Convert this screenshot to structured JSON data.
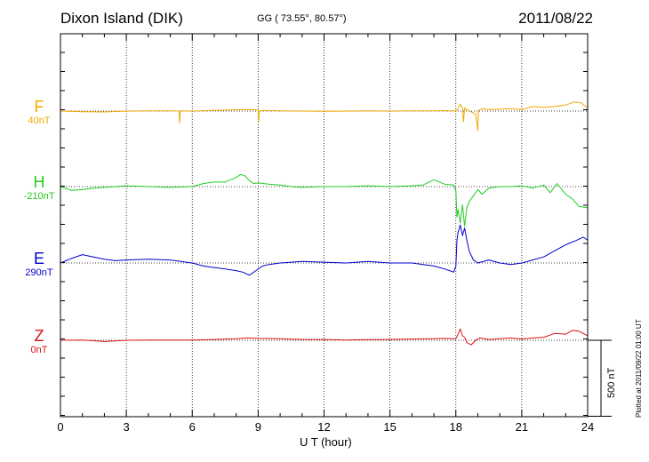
{
  "header": {
    "station": "Dixon Island (DIK)",
    "coords": "GG ( 73.55°,  80.57°)",
    "date": "2011/08/22"
  },
  "footer": {
    "plotted": "Plotted at 2011/09/22 01:00 UT",
    "scale_label": "500 nT"
  },
  "components": [
    {
      "letter": "F",
      "baseline": "40nT"
    },
    {
      "letter": "H",
      "baseline": "-210nT"
    },
    {
      "letter": "E",
      "baseline": "290nT"
    },
    {
      "letter": "Z",
      "baseline": "0nT"
    }
  ],
  "chart_data": {
    "type": "line",
    "title": "",
    "xlabel": "U T (hour)",
    "ylabel": "",
    "xlim": [
      0,
      24
    ],
    "x_ticks": [
      0,
      3,
      6,
      9,
      12,
      15,
      18,
      21,
      24
    ],
    "grid": "dotted vertical every 3 hours",
    "scale_bar_nT": 500,
    "nT_per_vertical_unit": "500 nT scale bar",
    "series": [
      {
        "name": "F",
        "color": "#f0a800",
        "baseline_label": "40nT",
        "x": [
          0,
          1,
          2,
          3,
          4,
          5,
          5.4,
          5.42,
          5.45,
          5.5,
          6,
          7,
          8,
          8.4,
          8.9,
          9.0,
          9.02,
          9.05,
          9.2,
          10,
          11,
          12,
          13,
          14,
          15,
          16,
          17,
          17.5,
          18,
          18.1,
          18.2,
          18.3,
          18.35,
          18.4,
          18.5,
          18.7,
          18.9,
          19.0,
          19.02,
          19.05,
          19.2,
          19.5,
          20,
          20.5,
          21,
          21.5,
          22,
          22.5,
          23,
          23.4,
          23.7,
          24
        ],
        "y": [
          0,
          -4,
          -6,
          0,
          2,
          1,
          0,
          -80,
          0,
          2,
          0,
          4,
          8,
          10,
          8,
          6,
          -70,
          0,
          4,
          2,
          0,
          -2,
          0,
          2,
          0,
          1,
          2,
          3,
          0,
          15,
          45,
          20,
          -70,
          20,
          10,
          -5,
          -20,
          -130,
          -10,
          5,
          15,
          10,
          12,
          15,
          10,
          30,
          25,
          30,
          40,
          60,
          55,
          20
        ]
      },
      {
        "name": "H",
        "color": "#22cc22",
        "baseline_label": "-210nT",
        "x": [
          0,
          0.5,
          1,
          1.5,
          2,
          2.5,
          3,
          4,
          5,
          6,
          6.5,
          7,
          7.5,
          8,
          8.2,
          8.4,
          8.6,
          8.8,
          9,
          9.5,
          10,
          10.5,
          11,
          12,
          13,
          14,
          15,
          16,
          16.5,
          17,
          17.5,
          17.9,
          18.0,
          18.05,
          18.1,
          18.2,
          18.3,
          18.4,
          18.5,
          18.6,
          18.8,
          19.0,
          19.2,
          19.5,
          20,
          20.5,
          21,
          21.5,
          22,
          22.3,
          22.6,
          23,
          23.3,
          23.6,
          24
        ],
        "y": [
          0,
          -25,
          -20,
          -10,
          -5,
          0,
          5,
          0,
          -5,
          0,
          20,
          30,
          30,
          60,
          80,
          70,
          40,
          20,
          25,
          15,
          10,
          0,
          -5,
          0,
          0,
          5,
          0,
          5,
          10,
          45,
          15,
          10,
          -30,
          -200,
          -150,
          -240,
          -120,
          -260,
          -140,
          -100,
          -60,
          -20,
          -50,
          -10,
          0,
          0,
          5,
          -10,
          10,
          -40,
          20,
          -50,
          -80,
          -130,
          -140
        ]
      },
      {
        "name": "E",
        "color": "#0000cc",
        "baseline_label": "290nT",
        "x": [
          0,
          0.5,
          1,
          1.5,
          2,
          2.5,
          3,
          4,
          5,
          6,
          6.5,
          7,
          7.5,
          8,
          8.3,
          8.6,
          8.9,
          9.2,
          9.5,
          10,
          11,
          12,
          13,
          14,
          15,
          16,
          17,
          17.5,
          17.9,
          18.0,
          18.05,
          18.1,
          18.2,
          18.3,
          18.4,
          18.5,
          18.6,
          18.8,
          19.0,
          19.5,
          20,
          20.5,
          21,
          21.5,
          22,
          22.5,
          23,
          23.5,
          23.8,
          24
        ],
        "y": [
          0,
          30,
          55,
          40,
          25,
          15,
          20,
          25,
          20,
          0,
          -20,
          -30,
          -40,
          -50,
          -60,
          -80,
          -50,
          -20,
          -10,
          0,
          10,
          5,
          0,
          10,
          0,
          0,
          -20,
          -40,
          -60,
          -20,
          150,
          200,
          250,
          180,
          230,
          150,
          80,
          20,
          0,
          20,
          0,
          -10,
          0,
          20,
          40,
          80,
          120,
          150,
          170,
          150
        ]
      },
      {
        "name": "Z",
        "color": "#dd1111",
        "baseline_label": "0nT",
        "x": [
          0,
          1,
          2,
          3,
          4,
          5,
          6,
          7,
          8,
          8.5,
          9,
          10,
          11,
          12,
          13,
          14,
          15,
          16,
          17,
          17.5,
          18,
          18.1,
          18.2,
          18.3,
          18.4,
          18.5,
          18.7,
          18.9,
          19.1,
          19.5,
          20,
          20.5,
          21,
          21.5,
          22,
          22.5,
          23,
          23.3,
          23.6,
          24
        ],
        "y": [
          0,
          2,
          -8,
          0,
          2,
          1,
          2,
          5,
          10,
          15,
          12,
          10,
          5,
          5,
          2,
          4,
          5,
          8,
          10,
          12,
          10,
          40,
          75,
          30,
          20,
          -15,
          -30,
          0,
          15,
          5,
          10,
          15,
          8,
          15,
          20,
          45,
          40,
          65,
          60,
          30
        ]
      }
    ]
  }
}
